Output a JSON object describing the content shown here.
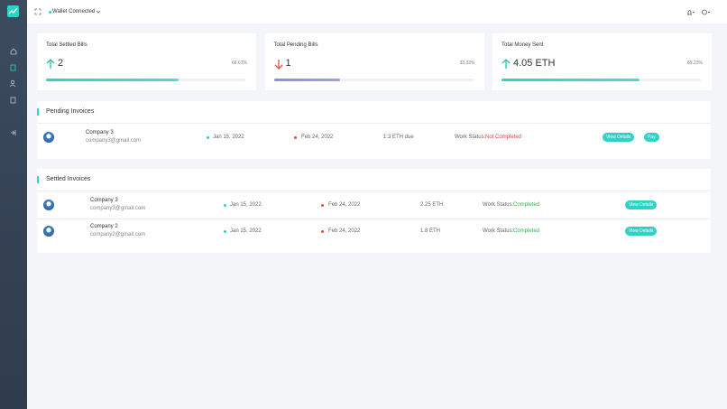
{
  "topbar": {
    "wallet_status": "Wallet Connected"
  },
  "stats": [
    {
      "title": "Total Settled Bills",
      "value": "2",
      "percent": {
        "value": 66.67,
        "label": "66.67%"
      },
      "trend": "up",
      "color": "#2dd4bf"
    },
    {
      "title": "Total Pending Bills",
      "value": "1",
      "percent": {
        "value": 33.33,
        "label": "33.33%"
      },
      "trend": "down",
      "color": "#8b8fd8"
    },
    {
      "title": "Total Money Sent",
      "value": "4.05 ETH",
      "percent": {
        "value": 69.23,
        "label": "69.23%"
      },
      "trend": "up",
      "color": "#2dd4bf"
    }
  ],
  "pending_invoices": {
    "title": "Pending Invoices",
    "rows": [
      {
        "company": "Company 3",
        "email": "company3@gmail.com",
        "issue_date": "Jan 15, 2022",
        "due_date": "Feb 24, 2022",
        "amount": "1.3 ETH due",
        "work_status_label": "Work Status:",
        "work_status": "Not Completed",
        "actions": [
          "View Details",
          "Pay"
        ]
      }
    ]
  },
  "settled_invoices": {
    "title": "Settled Invoices",
    "rows": [
      {
        "company": "Company 3",
        "email": "company3@gmail.com",
        "issue_date": "Jan 15, 2022",
        "due_date": "Feb 24, 2022",
        "amount": "2.25 ETH",
        "work_status_label": "Work Status:",
        "work_status": "Completed",
        "actions": [
          "View Details"
        ]
      },
      {
        "company": "Company 2",
        "email": "company2@gmail.com",
        "issue_date": "Jan 15, 2022",
        "due_date": "Feb 24, 2022",
        "amount": "1.8 ETH",
        "work_status_label": "Work Status:",
        "work_status": "Completed",
        "actions": [
          "View Details"
        ]
      }
    ]
  }
}
